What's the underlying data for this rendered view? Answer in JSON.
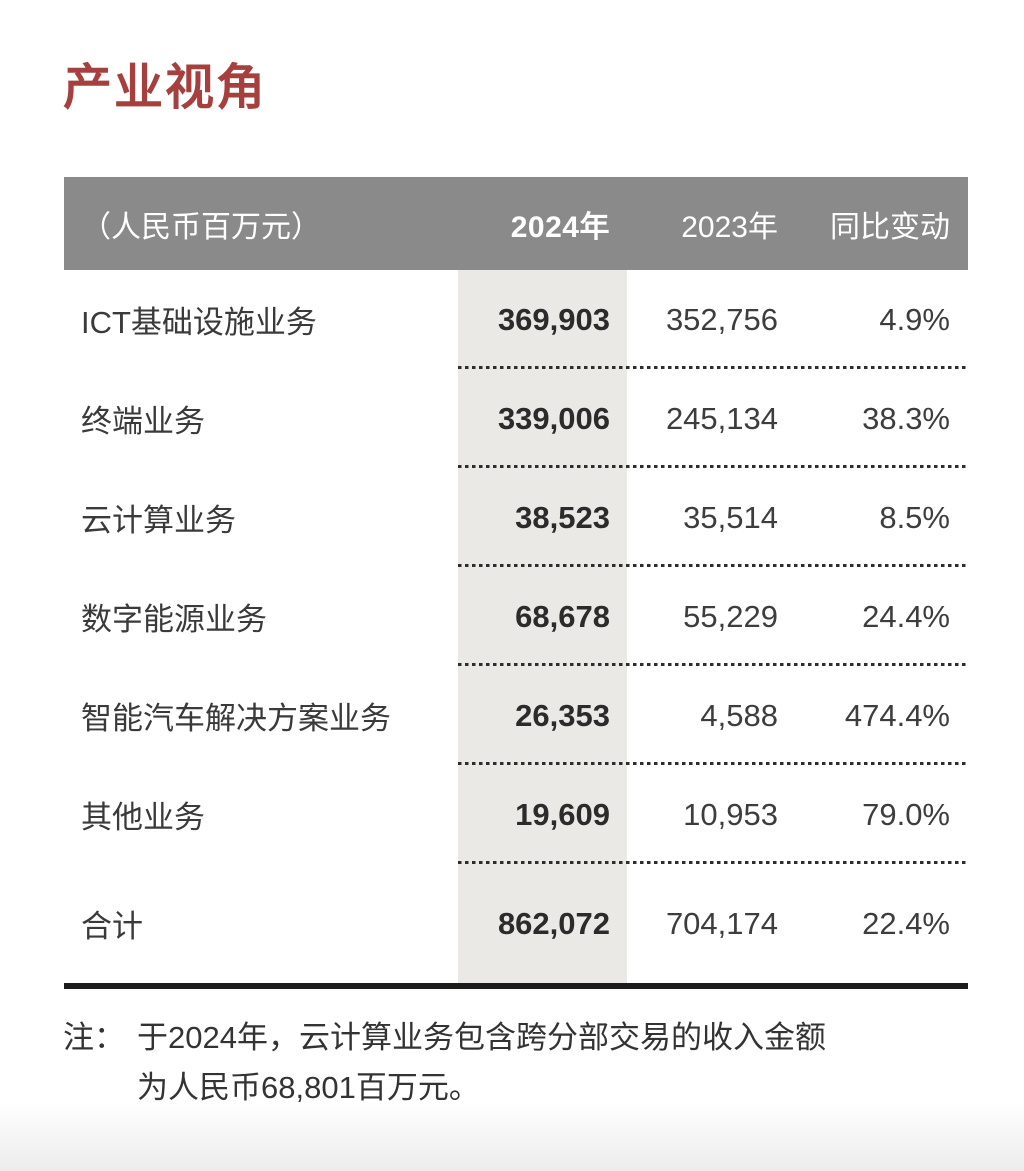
{
  "title": "产业视角",
  "colors": {
    "accent_red": "#A6403E",
    "header_bg": "#8B8A8A",
    "header_text": "#FFFFFF",
    "column_highlight_bg": "#EAE9E6",
    "body_text": "#3A3A3A",
    "rule_black": "#1C1C1C"
  },
  "table": {
    "unit_label": "（人民币百万元）",
    "columns": [
      "2024年",
      "2023年",
      "同比变动"
    ],
    "rows": [
      {
        "label": "ICT基础设施业务",
        "y2024": "369,903",
        "y2023": "352,756",
        "change": "4.9%"
      },
      {
        "label": "终端业务",
        "y2024": "339,006",
        "y2023": "245,134",
        "change": "38.3%"
      },
      {
        "label": "云计算业务",
        "y2024": "38,523",
        "y2023": "35,514",
        "change": "8.5%"
      },
      {
        "label": "数字能源业务",
        "y2024": "68,678",
        "y2023": "55,229",
        "change": "24.4%"
      },
      {
        "label": "智能汽车解决方案业务",
        "y2024": "26,353",
        "y2023": "4,588",
        "change": "474.4%"
      },
      {
        "label": "其他业务",
        "y2024": "19,609",
        "y2023": "10,953",
        "change": "79.0%"
      },
      {
        "label": "合计",
        "y2024": "862,072",
        "y2023": "704,174",
        "change": "22.4%"
      }
    ]
  },
  "note": {
    "label": "注：",
    "line1": "于2024年，云计算业务包含跨分部交易的收入金额",
    "line2": "为人民币68,801百万元。"
  }
}
